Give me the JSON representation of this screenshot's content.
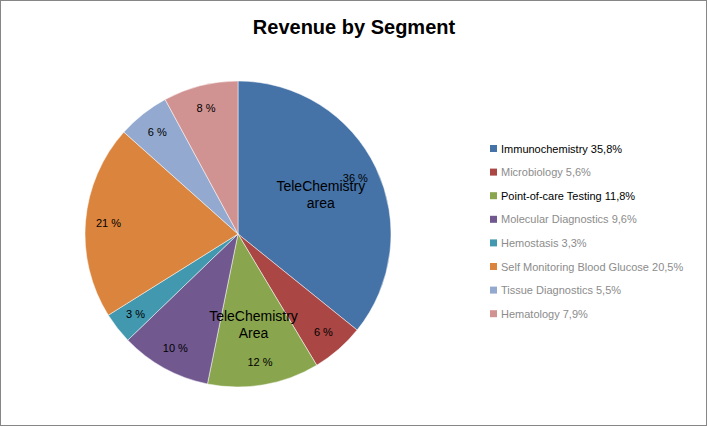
{
  "chart_data": {
    "type": "pie",
    "title": "Revenue by Segment",
    "categories": [
      "Immunochemistry 35,8%",
      "Microbiology 5,6%",
      "Point-of-care Testing 11,8%",
      "Molecular Diagnostics 9,6%",
      "Hemostasis 3,3%",
      "Self Monitoring Blood Glucose 20,5%",
      "Tissue Diagnostics 5,5%",
      "Hematology 7,9%"
    ],
    "values": [
      35.8,
      5.6,
      11.8,
      9.6,
      3.3,
      20.5,
      5.5,
      7.9
    ],
    "value_labels": [
      "36 %",
      "6 %",
      "12 %",
      "10 %",
      "3 %",
      "21 %",
      "6 %",
      "8 %"
    ],
    "colors": [
      "#4572a7",
      "#aa4643",
      "#89a54e",
      "#71588f",
      "#4198af",
      "#db843d",
      "#93a9cf",
      "#d19392"
    ],
    "data_labels": true,
    "legend": "right",
    "annotations": [
      {
        "text": "TeleChemistry area",
        "index": 0
      },
      {
        "text": "TeleChemistry Area",
        "index": 2
      }
    ]
  }
}
